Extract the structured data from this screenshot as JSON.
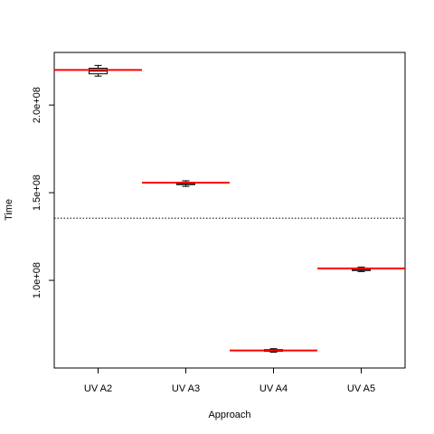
{
  "chart_data": {
    "type": "box",
    "xlabel": "Approach",
    "ylabel": "Time",
    "categories": [
      "UV A2",
      "UV A3",
      "UV A4",
      "UV A5"
    ],
    "ylim": [
      50000000,
      230000000
    ],
    "yticks": [
      100000000,
      150000000,
      200000000
    ],
    "ytick_labels": [
      "1.0e+08",
      "1.5e+08",
      "2.0e+08"
    ],
    "boxes": [
      {
        "category": "UV A2",
        "whisker_low": 216500000,
        "q1": 217800000,
        "median": 219600000,
        "q3": 221000000,
        "whisker_high": 222600000,
        "mean_line": 220000000
      },
      {
        "category": "UV A3",
        "whisker_low": 153600000,
        "q1": 154600000,
        "median": 155400000,
        "q3": 156000000,
        "whisker_high": 156800000,
        "mean_line": 155700000
      },
      {
        "category": "UV A4",
        "whisker_low": 59000000,
        "q1": 59500000,
        "median": 60000000,
        "q3": 60500000,
        "whisker_high": 61000000,
        "mean_line": 60000000
      },
      {
        "category": "UV A5",
        "whisker_low": 105000000,
        "q1": 105600000,
        "median": 106400000,
        "q3": 107000000,
        "whisker_high": 107600000,
        "mean_line": 106800000
      }
    ],
    "reference_line": {
      "value": 135500000,
      "style": "dotted"
    },
    "colors": {
      "mean_line": "#ff0000",
      "box": "#000000",
      "reference": "#000000"
    },
    "grid": false,
    "legend": "none"
  }
}
